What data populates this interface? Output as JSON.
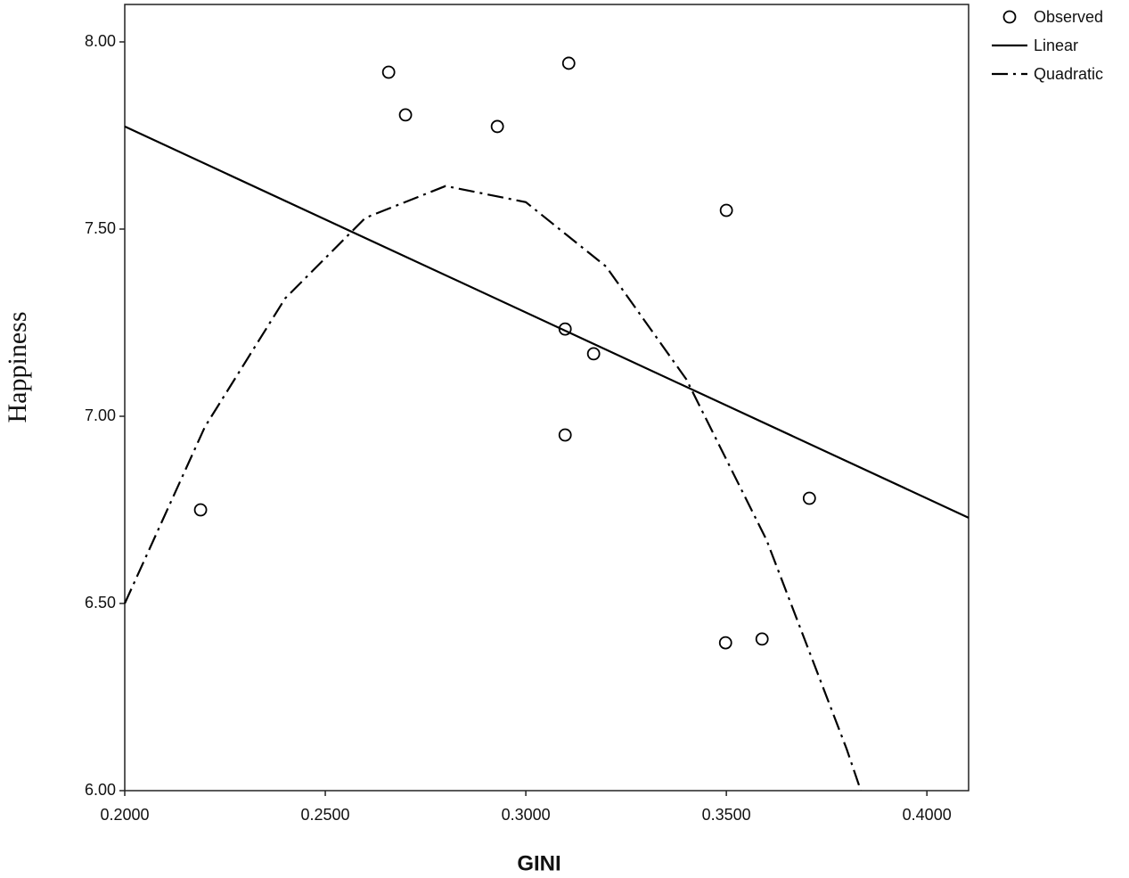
{
  "chart_data": {
    "type": "scatter",
    "x_label": "GINI",
    "y_label": "Happiness",
    "xlim": [
      0.2,
      0.4104
    ],
    "ylim": [
      6,
      8.1
    ],
    "xticks": [
      {
        "value": 0.2,
        "label": "0.2000"
      },
      {
        "value": 0.25,
        "label": "0.2500"
      },
      {
        "value": 0.3,
        "label": "0.3000"
      },
      {
        "value": 0.35,
        "label": "0.3500"
      },
      {
        "value": 0.4,
        "label": "0.4000"
      }
    ],
    "yticks": [
      {
        "value": 6,
        "label": "6.00"
      },
      {
        "value": 6.5,
        "label": "6.50"
      },
      {
        "value": 7,
        "label": "7.00"
      },
      {
        "value": 7.5,
        "label": "7.50"
      },
      {
        "value": 8,
        "label": "8.00"
      }
    ],
    "legend": "top-right-outside",
    "series": [
      {
        "name": "Observed",
        "color": "#000000",
        "marker": "circle",
        "x": [
          0.2189,
          0.2658,
          0.27,
          0.2929,
          0.3107,
          0.35,
          0.3098,
          0.3169,
          0.3098,
          0.3707,
          0.3498,
          0.3589
        ],
        "values": [
          6.75,
          7.919,
          7.805,
          7.774,
          7.943,
          7.55,
          7.233,
          7.167,
          6.95,
          6.781,
          6.395,
          6.405
        ]
      },
      {
        "name": "Linear",
        "color": "#000000",
        "line": "solid",
        "x": [
          0.2,
          0.4104
        ],
        "values": [
          7.774,
          6.729
        ]
      },
      {
        "name": "Quadratic",
        "color": "#000000",
        "line": "dash-dot",
        "x": [
          0.2,
          0.22,
          0.24,
          0.26,
          0.28,
          0.3,
          0.32,
          0.34,
          0.36,
          0.38,
          0.3835
        ],
        "values": [
          6.5,
          6.972,
          7.315,
          7.53,
          7.615,
          7.572,
          7.4,
          7.099,
          6.67,
          6.111,
          6.001
        ]
      }
    ]
  }
}
